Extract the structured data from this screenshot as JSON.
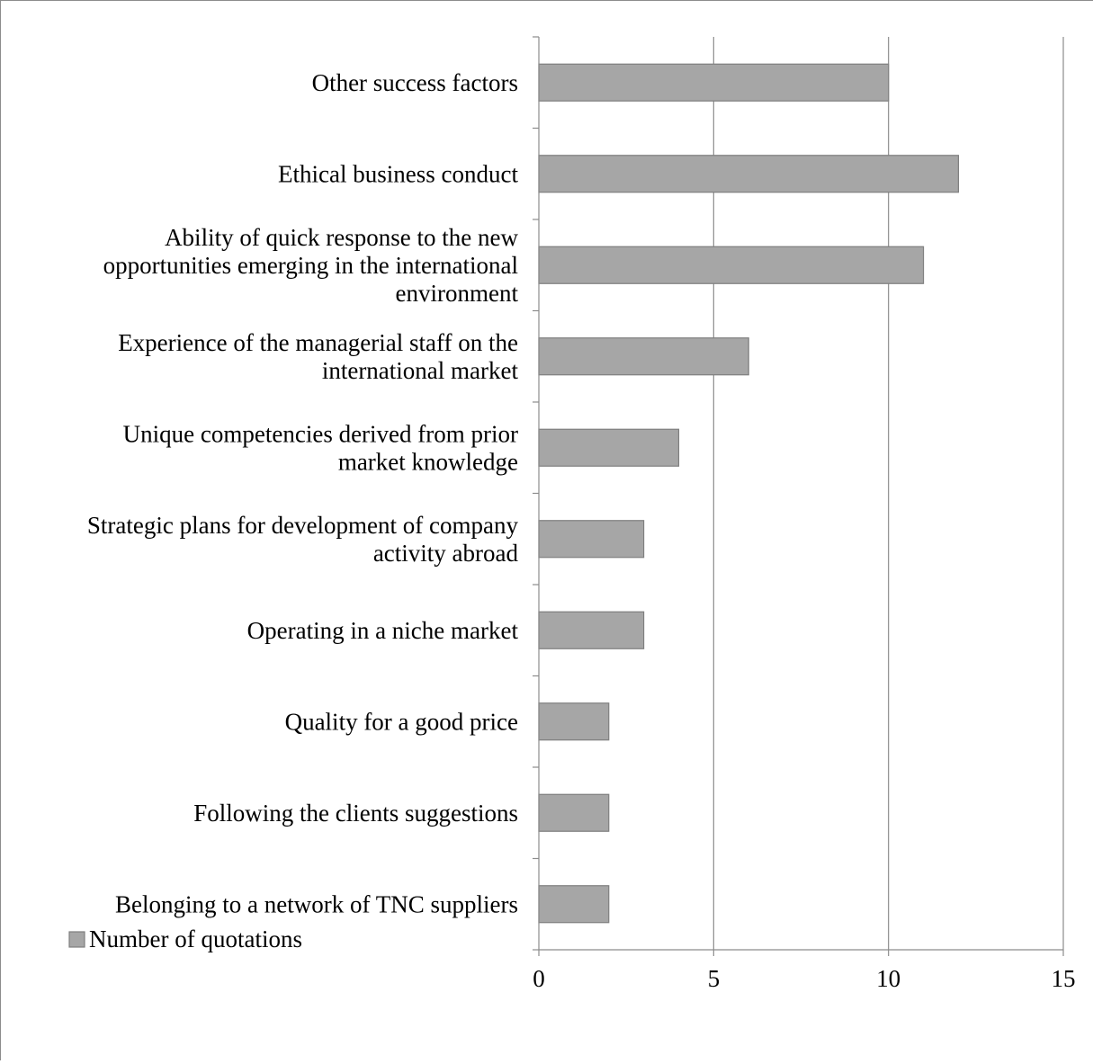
{
  "chart_data": {
    "type": "bar",
    "orientation": "horizontal",
    "categories": [
      "Other success factors",
      "Ethical business conduct",
      "Ability of quick response to the new opportunities emerging in the international environment",
      "Experience of  the managerial staff on the international market",
      "Unique competencies derived from prior market knowledge",
      "Strategic plans for development of company activity abroad",
      "Operating in a niche market",
      "Quality for a good price",
      "Following the clients suggestions",
      "Belonging to a network of TNC suppliers"
    ],
    "category_lines": [
      [
        "Other success factors"
      ],
      [
        "Ethical business conduct"
      ],
      [
        "Ability of quick response to the new",
        "opportunities emerging in the international",
        "environment"
      ],
      [
        "Experience of  the managerial staff on the",
        "international market"
      ],
      [
        "Unique competencies derived from prior",
        "market knowledge"
      ],
      [
        "Strategic plans for development of company",
        "activity abroad"
      ],
      [
        "Operating in a niche market"
      ],
      [
        "Quality for a good price"
      ],
      [
        "Following the clients suggestions"
      ],
      [
        "Belonging to a network of TNC suppliers"
      ]
    ],
    "series": [
      {
        "name": "Number of quotations",
        "values": [
          10,
          12,
          11,
          6,
          4,
          3,
          3,
          2,
          2,
          2
        ],
        "color": "#a6a6a6",
        "stroke": "#7f7f7f"
      }
    ],
    "xlim": [
      0,
      15
    ],
    "xticks": [
      "0",
      "5",
      "10",
      "15"
    ],
    "xtick_values": [
      0,
      5,
      10,
      15
    ],
    "grid": "vertical",
    "legend": "bottom-left"
  }
}
